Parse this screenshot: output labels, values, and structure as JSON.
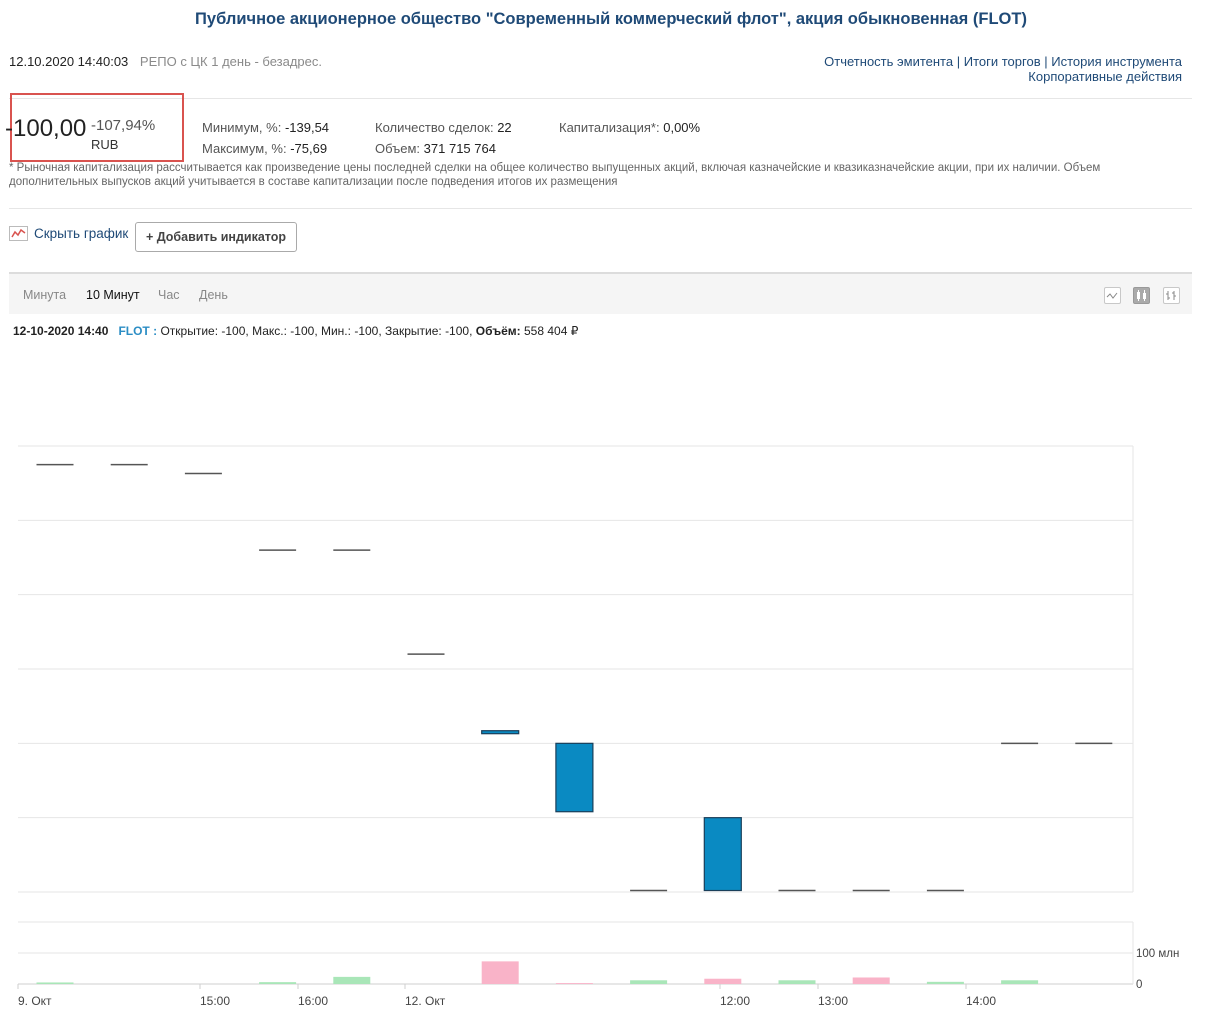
{
  "header": {
    "title": "Публичное акционерное общество \"Современный коммерческий флот\", акция обыкновенная (FLOT)",
    "datetime": "12.10.2020 14:40:03",
    "mode": "РЕПО с ЦК 1 день - безадрес.",
    "links": [
      "Отчетность эмитента",
      "Итоги торгов",
      "История инструмента",
      "Корпоративные действия"
    ],
    "separator": "|"
  },
  "quote": {
    "price": "-100,00",
    "change": "-107,94%",
    "currency": "RUB",
    "min_label": "Минимум, %:",
    "min_value": "-139,54",
    "max_label": "Максимум, %:",
    "max_value": "-75,69",
    "deals_label": "Количество сделок:",
    "deals_value": "22",
    "volume_label": "Объем:",
    "volume_value": "371 715 764",
    "cap_label": "Капитализация*:",
    "cap_value": "0,00%",
    "footnote": "* Рыночная капитализация рассчитывается как произведение цены последней сделки на общее количество выпущенных акций, включая казначейские и квазиказначейские акции, при их наличии. Объем дополнительных выпусков акций учитывается в составе капитализации после подведения итогов их размещения"
  },
  "controls": {
    "hide_chart": "Скрыть график",
    "add_indicator": "+ Добавить индикатор",
    "tabs": [
      "Минута",
      "10 Минут",
      "Час",
      "День"
    ],
    "active_tab": "10 Минут",
    "chart_type_icons": [
      "line-chart-icon",
      "candlestick-chart-icon",
      "bar-chart-icon"
    ],
    "active_chart_type": "candlestick-chart-icon"
  },
  "ohlc": {
    "time": "12-10-2020 14:40",
    "ticker": "FLOT :",
    "open_label": "Открытие:",
    "open": "-100",
    "high_label": "Макс.:",
    "high": "-100",
    "low_label": "Мин.:",
    "low": "-100",
    "close_label": "Закрытие:",
    "close": "-100",
    "volume_label": "Объём:",
    "volume": "558 404 ₽"
  },
  "colors": {
    "candle_down": "#0a8ac2",
    "volume_up": "#a9e6b8",
    "volume_down": "#f9b3c8",
    "doji": "#555555",
    "link": "#1f4a77",
    "highlight_box": "#d9534f"
  },
  "chart_data": {
    "type": "candlestick",
    "x_tick_labels": [
      "9. Окт",
      "15:00",
      "16:00",
      "12. Окт",
      "12:00",
      "13:00",
      "14:00"
    ],
    "volume_tick_labels": [
      "100 млн",
      "0"
    ],
    "price_grid_levels": 6,
    "note": "price axis labels not visible; values given in grid units (0 = bottom line, 6 = top line)",
    "candles": [
      {
        "open": 5.75,
        "close": 5.75,
        "dir": "flat"
      },
      {
        "open": 5.75,
        "close": 5.75,
        "dir": "flat"
      },
      {
        "open": 5.63,
        "close": 5.63,
        "dir": "flat"
      },
      {
        "open": 4.6,
        "close": 4.6,
        "dir": "flat"
      },
      {
        "open": 4.6,
        "close": 4.6,
        "dir": "flat"
      },
      {
        "open": 3.2,
        "close": 3.2,
        "dir": "flat"
      },
      {
        "open": 2.17,
        "close": 2.13,
        "dir": "down"
      },
      {
        "open": 2.0,
        "close": 1.08,
        "dir": "down"
      },
      {
        "open": 0.02,
        "close": 0.02,
        "dir": "flat"
      },
      {
        "open": 1.0,
        "close": 0.02,
        "dir": "down"
      },
      {
        "open": 0.02,
        "close": 0.02,
        "dir": "flat"
      },
      {
        "open": 0.02,
        "close": 0.02,
        "dir": "flat"
      },
      {
        "open": 0.02,
        "close": 0.02,
        "dir": "flat"
      },
      {
        "open": 2.0,
        "close": 2.0,
        "dir": "flat"
      },
      {
        "open": 2.0,
        "close": 2.0,
        "dir": "flat"
      }
    ],
    "volume_mln": [
      5,
      0,
      0,
      6,
      23,
      0,
      73,
      3,
      12,
      17,
      12,
      21,
      7,
      12,
      0
    ],
    "volume_dir": [
      "up",
      "up",
      "up",
      "up",
      "up",
      "up",
      "down",
      "down",
      "up",
      "down",
      "up",
      "down",
      "up",
      "up",
      "up"
    ]
  }
}
